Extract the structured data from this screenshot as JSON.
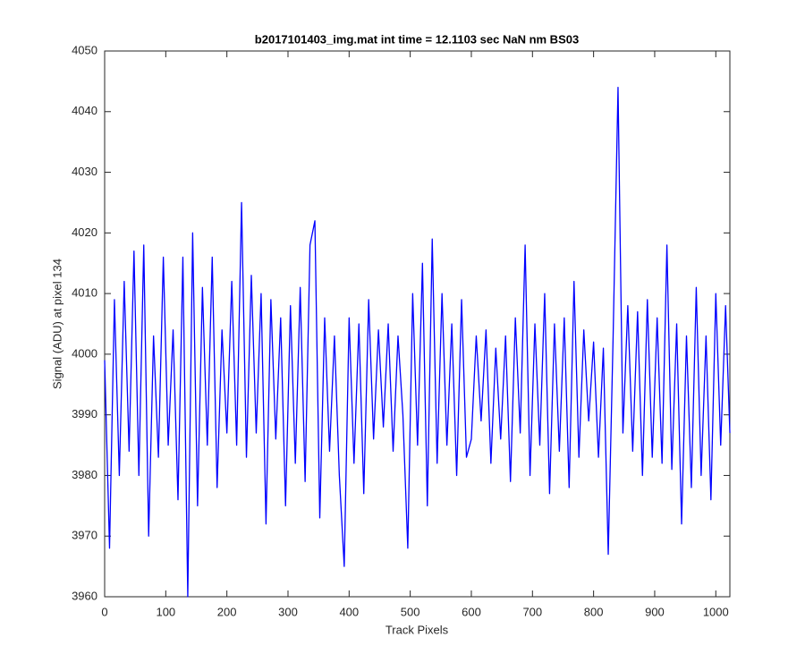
{
  "chart_data": {
    "type": "line",
    "title": "b2017101403_img.mat int time = 12.1103 sec  NaN nm BS03",
    "x_label": "Track Pixels",
    "y_label": "Signal (ADU) at pixel 134",
    "x": [
      0,
      8,
      16,
      24,
      32,
      40,
      48,
      56,
      64,
      72,
      80,
      88,
      96,
      104,
      112,
      120,
      128,
      136,
      144,
      152,
      160,
      168,
      176,
      184,
      192,
      200,
      208,
      216,
      224,
      232,
      240,
      248,
      256,
      264,
      272,
      280,
      288,
      296,
      304,
      312,
      320,
      328,
      336,
      344,
      352,
      360,
      368,
      376,
      384,
      392,
      400,
      408,
      416,
      424,
      432,
      440,
      448,
      456,
      464,
      472,
      480,
      488,
      496,
      504,
      512,
      520,
      528,
      536,
      544,
      552,
      560,
      568,
      576,
      584,
      592,
      600,
      608,
      616,
      624,
      632,
      640,
      648,
      656,
      664,
      672,
      680,
      688,
      696,
      704,
      712,
      720,
      728,
      736,
      744,
      752,
      760,
      768,
      776,
      784,
      792,
      800,
      808,
      816,
      824,
      832,
      840,
      848,
      856,
      864,
      872,
      880,
      888,
      896,
      904,
      912,
      920,
      928,
      936,
      944,
      952,
      960,
      968,
      976,
      984,
      992,
      1000,
      1008,
      1016,
      1023
    ],
    "series": [
      {
        "color": "#0000ff",
        "values": [
          3999,
          3968,
          4009,
          3980,
          4012,
          3984,
          4017,
          3980,
          4018,
          3970,
          4003,
          3983,
          4016,
          3985,
          4004,
          3976,
          4016,
          3960,
          4020,
          3975,
          4011,
          3985,
          4016,
          3978,
          4004,
          3987,
          4012,
          3985,
          4025,
          3983,
          4013,
          3987,
          4010,
          3972,
          4009,
          3986,
          4006,
          3975,
          4008,
          3982,
          4011,
          3979,
          4018,
          4022,
          3973,
          4006,
          3984,
          4003,
          3980,
          3965,
          4006,
          3982,
          4005,
          3977,
          4009,
          3986,
          4004,
          3988,
          4005,
          3984,
          4003,
          3990,
          3968,
          4010,
          3985,
          4015,
          3975,
          4019,
          3982,
          4010,
          3985,
          4005,
          3980,
          4009,
          3983,
          3986,
          4003,
          3989,
          4004,
          3982,
          4001,
          3986,
          4003,
          3979,
          4006,
          3987,
          4018,
          3980,
          4005,
          3985,
          4010,
          3977,
          4005,
          3984,
          4006,
          3978,
          4012,
          3983,
          4004,
          3989,
          4002,
          3983,
          4001,
          3967,
          4003,
          4044,
          3987,
          4008,
          3984,
          4007,
          3980,
          4009,
          3983,
          4006,
          3982,
          4018,
          3981,
          4005,
          3972,
          4003,
          3978,
          4011,
          3980,
          4003,
          3976,
          4010,
          3985,
          4008,
          3987
        ]
      }
    ],
    "xlim": [
      0,
      1023
    ],
    "ylim": [
      3960,
      4050
    ],
    "xticks": [
      0,
      100,
      200,
      300,
      400,
      500,
      600,
      700,
      800,
      900,
      1000
    ],
    "yticks": [
      3960,
      3970,
      3980,
      3990,
      4000,
      4010,
      4020,
      4030,
      4040,
      4050
    ]
  }
}
